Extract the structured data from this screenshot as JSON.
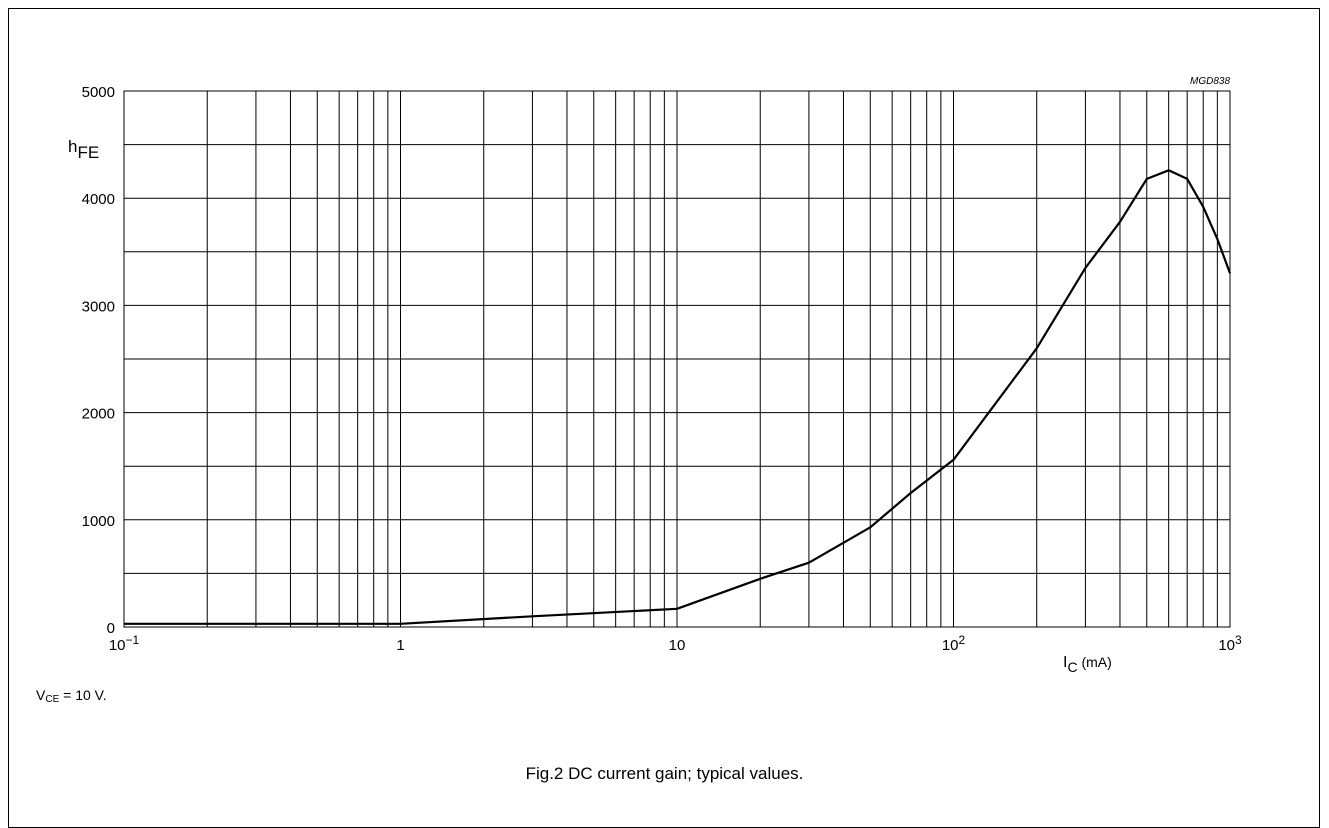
{
  "chart_data": {
    "type": "line",
    "x_scale": "log",
    "xlim": [
      0.1,
      1000
    ],
    "ylim": [
      0,
      5000
    ],
    "grid": true,
    "x_ticks": [
      0.1,
      1,
      10,
      100,
      1000
    ],
    "x_tick_labels": [
      {
        "base": "10",
        "exp": "−1"
      },
      {
        "base": "1",
        "exp": ""
      },
      {
        "base": "10",
        "exp": ""
      },
      {
        "base": "10",
        "exp": "2"
      },
      {
        "base": "10",
        "exp": "3"
      }
    ],
    "y_ticks": [
      0,
      1000,
      2000,
      3000,
      4000,
      5000
    ],
    "y_tick_labels": [
      "0",
      "1000",
      "2000",
      "3000",
      "4000",
      "5000"
    ],
    "ylabel": {
      "base": "h",
      "sub": "FE"
    },
    "xlabel": {
      "base": "I",
      "sub": "C",
      "unit": " (mA)"
    },
    "code": "MGD838",
    "series": [
      {
        "x": [
          0.1,
          0.3,
          1,
          3,
          10,
          20,
          30,
          50,
          70,
          100,
          200,
          300,
          400,
          500,
          600,
          700,
          800,
          900,
          1000
        ],
        "y": [
          30,
          30,
          30,
          100,
          170,
          450,
          600,
          930,
          1250,
          1560,
          2600,
          3350,
          3780,
          4180,
          4260,
          4180,
          3920,
          3620,
          3300
        ]
      }
    ]
  },
  "condition": {
    "base": "V",
    "sub": "CE",
    "rest": " = 10 V."
  },
  "caption": "Fig.2  DC current gain; typical values."
}
